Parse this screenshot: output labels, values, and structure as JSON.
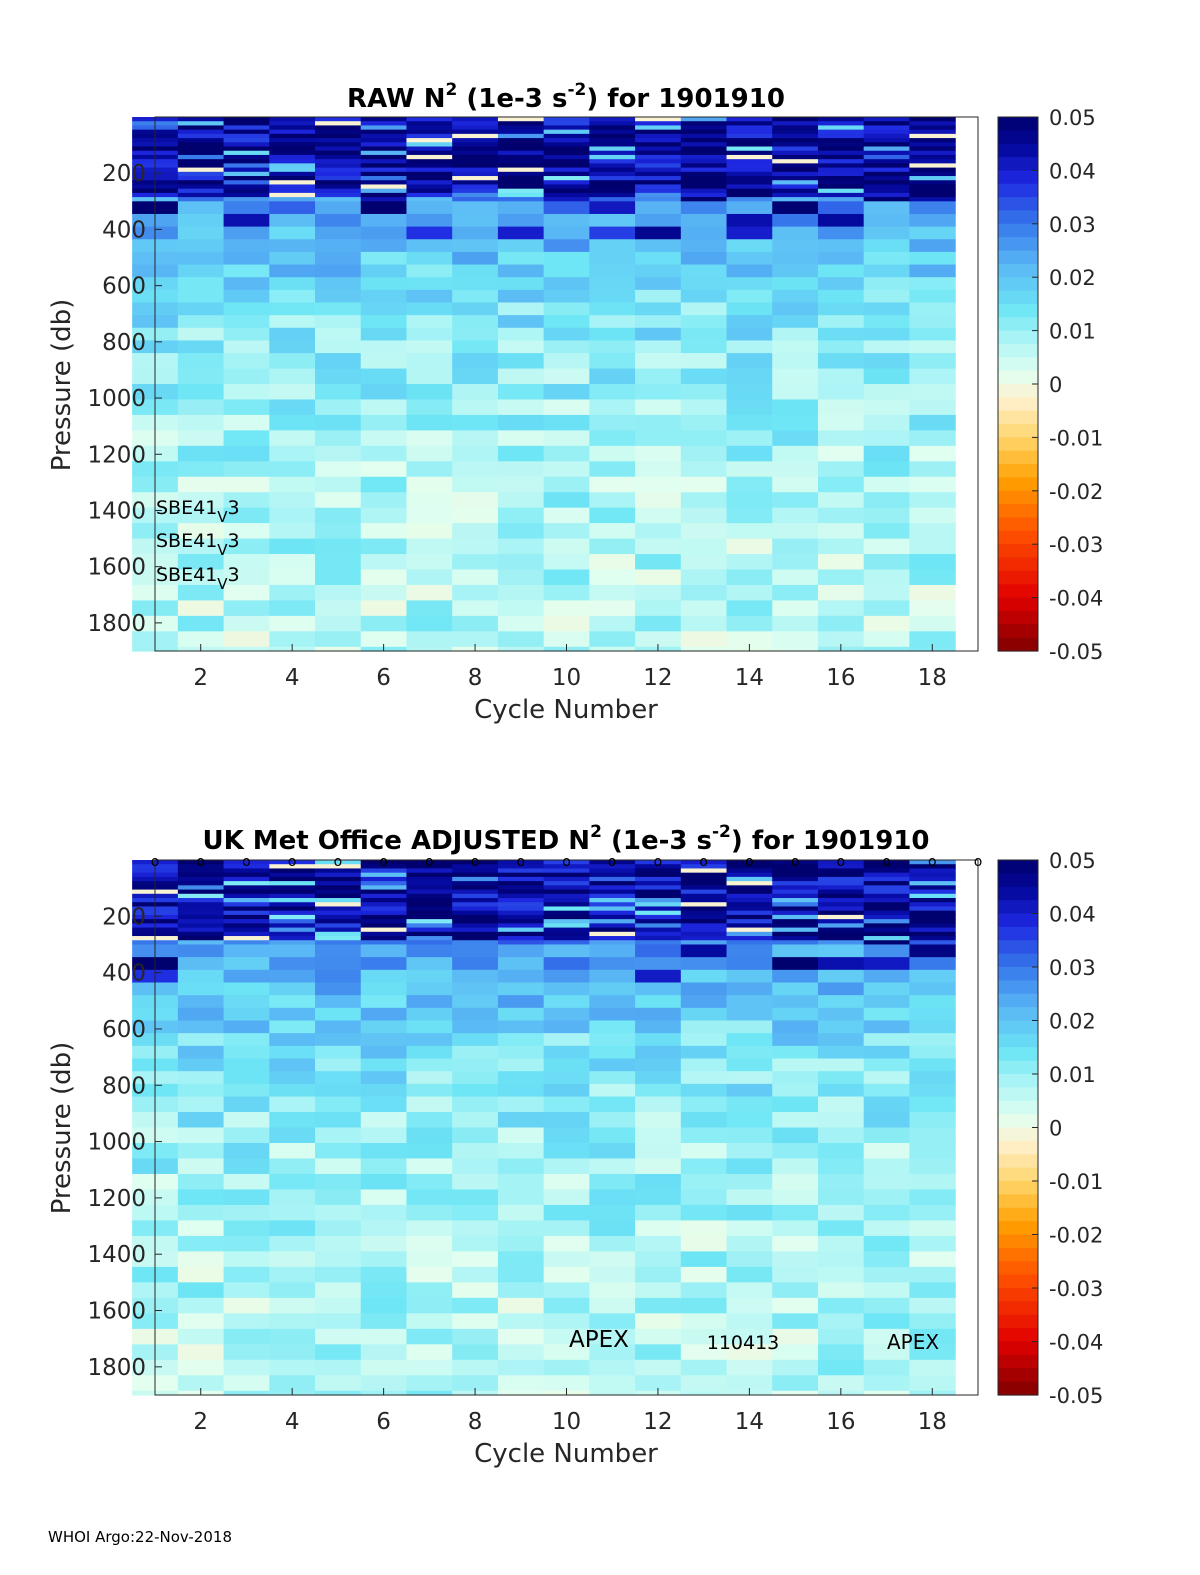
{
  "chart_data": [
    {
      "type": "heatmap",
      "title_prefix": "RAW N",
      "title_sup1": "2",
      "title_mid": " (1e-3 s",
      "title_sup2": "-2",
      "title_suffix": ") for 1901910",
      "xlabel": "Cycle Number",
      "ylabel": "Pressure (db)",
      "xlim": [
        1,
        19
      ],
      "ylim": [
        0,
        1900
      ],
      "y_reversed": true,
      "x_ticks": [
        2,
        4,
        6,
        8,
        10,
        12,
        14,
        16,
        18
      ],
      "y_ticks": [
        200,
        400,
        600,
        800,
        1000,
        1200,
        1400,
        1600,
        1800
      ],
      "colorbar": {
        "range": [
          -0.05,
          0.05
        ],
        "ticks": [
          "0.05",
          "0.04",
          "0.03",
          "0.02",
          "0.01",
          "0",
          "-0.01",
          "-0.02",
          "-0.03",
          "-0.04",
          "-0.05"
        ]
      },
      "cycles": [
        1,
        2,
        3,
        4,
        5,
        6,
        7,
        8,
        9,
        10,
        11,
        12,
        13,
        14,
        15,
        16,
        17,
        18
      ],
      "annotations": [
        {
          "base": "SBE41",
          "sub": "V",
          "tail": "3"
        },
        {
          "base": "SBE41",
          "sub": "V",
          "tail": "3"
        },
        {
          "base": "SBE41",
          "sub": "V",
          "tail": "3"
        }
      ],
      "seed": 7
    },
    {
      "type": "heatmap",
      "title_prefix": "UK Met Office  ADJUSTED N",
      "title_sup1": "2",
      "title_mid": " (1e-3 s",
      "title_sup2": "-2",
      "title_suffix": ") for 1901910",
      "xlabel": "Cycle Number",
      "ylabel": "Pressure (db)",
      "xlim": [
        1,
        19
      ],
      "ylim": [
        0,
        1900
      ],
      "y_reversed": true,
      "x_ticks": [
        2,
        4,
        6,
        8,
        10,
        12,
        14,
        16,
        18
      ],
      "y_ticks": [
        200,
        400,
        600,
        800,
        1000,
        1200,
        1400,
        1600,
        1800
      ],
      "colorbar": {
        "range": [
          -0.05,
          0.05
        ],
        "ticks": [
          "0.05",
          "0.04",
          "0.03",
          "0.02",
          "0.01",
          "0",
          "-0.01",
          "-0.02",
          "-0.03",
          "-0.04",
          "-0.05"
        ]
      },
      "cycles": [
        1,
        2,
        3,
        4,
        5,
        6,
        7,
        8,
        9,
        10,
        11,
        12,
        13,
        14,
        15,
        16,
        17,
        18
      ],
      "top_markers": "o",
      "labels": [
        "APEX",
        "110413",
        "APEX"
      ],
      "seed": 11
    }
  ],
  "footer": "WHOI Argo:22-Nov-2018"
}
